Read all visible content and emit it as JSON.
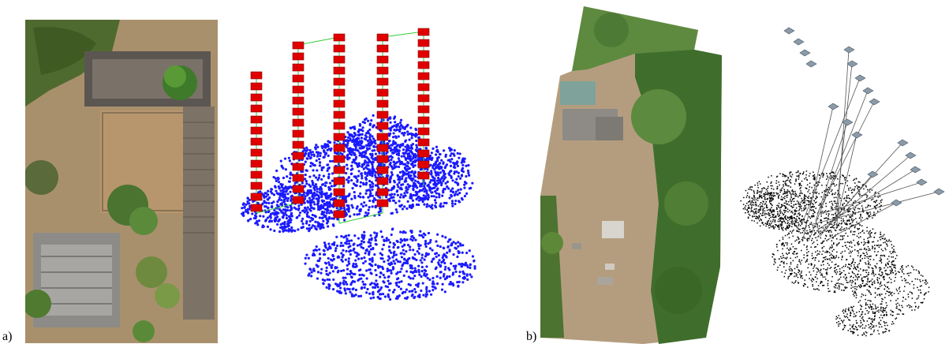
{
  "labels": {
    "a": "a)",
    "b": "b)"
  },
  "colors": {
    "points_blue": "#1a1aff",
    "camera_red": "#e00000",
    "track_green": "#33cc33",
    "points_black": "#000000",
    "camera_gray": "#8a9aa8",
    "ray_gray": "#555555"
  }
}
